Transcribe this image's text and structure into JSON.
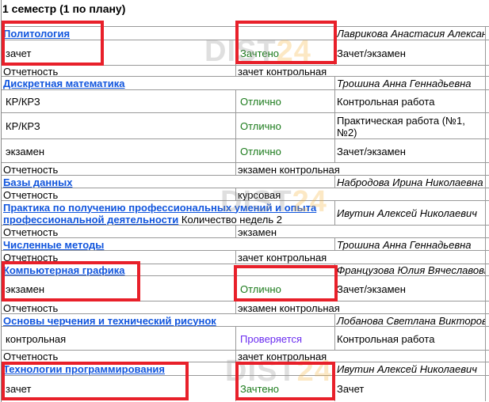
{
  "title": "1 семестр (1 по плану)",
  "watermark": {
    "main": "DIST",
    "accent": "24"
  },
  "colors": {
    "link": "#1155dd",
    "grade_ok": "#1a7a1a",
    "grade_pending": "#6a2cf0",
    "highlight": "#e8202a"
  },
  "rows": [
    {
      "type": "subject",
      "subject": "Политология",
      "teacher": "Лаврикова Анастасия Александровна"
    },
    {
      "type": "grade",
      "kind": "зачет",
      "grade": "Зачтено",
      "grade_style": "green",
      "work": "Зачет/экзамен"
    },
    {
      "type": "report",
      "label": "Отчетность",
      "value": "зачет контрольная"
    },
    {
      "type": "subject",
      "subject": "Дискретная математика",
      "teacher": "Трошина Анна Геннадьевна"
    },
    {
      "type": "grade",
      "kind": "КР/КРЗ",
      "grade": "Отлично",
      "grade_style": "green",
      "work": "Контрольная работа"
    },
    {
      "type": "grade",
      "kind": "КР/КРЗ",
      "grade": "Отлично",
      "grade_style": "green",
      "work": "Практическая работа (№1, №2)"
    },
    {
      "type": "grade",
      "kind": "экзамен",
      "grade": "Отлично",
      "grade_style": "green",
      "work": "Зачет/экзамен"
    },
    {
      "type": "report",
      "label": "Отчетность",
      "value": "экзамен контрольная"
    },
    {
      "type": "subject",
      "subject": "Базы данных",
      "teacher": "Набродова Ирина Николаевна"
    },
    {
      "type": "report",
      "label": "Отчетность",
      "value": "курсовая"
    },
    {
      "type": "subject",
      "subject": "Практика по получению профессиональных умений и опыта профессиональной деятельности",
      "extra": "Количество недель 2",
      "teacher": "Ивутин Алексей Николаевич"
    },
    {
      "type": "report",
      "label": "Отчетность",
      "value": "экзамен"
    },
    {
      "type": "subject",
      "subject": "Численные методы",
      "teacher": "Трошина Анна Геннадьевна"
    },
    {
      "type": "report",
      "label": "Отчетность",
      "value": "зачет контрольная"
    },
    {
      "type": "subject",
      "subject": "Компьютерная графика",
      "teacher": "Французова Юлия Вячеславовна"
    },
    {
      "type": "grade",
      "kind": "экзамен",
      "grade": "Отлично",
      "grade_style": "green",
      "work": "Зачет/экзамен"
    },
    {
      "type": "report",
      "label": "Отчетность",
      "value": "экзамен контрольная"
    },
    {
      "type": "subject",
      "subject": "Основы черчения и технический рисунок",
      "teacher": "Лобанова Светлана Викторовна"
    },
    {
      "type": "grade",
      "kind": "контрольная",
      "grade": "Проверяется",
      "grade_style": "violet",
      "work": "Контрольная работа"
    },
    {
      "type": "report",
      "label": "Отчетность",
      "value": "зачет контрольная"
    },
    {
      "type": "subject",
      "subject": "Технологии программирования",
      "teacher": "Ивутин Алексей Николаевич"
    },
    {
      "type": "grade",
      "kind": "зачет",
      "grade": "Зачтено",
      "grade_style": "green",
      "work": "Зачет"
    }
  ]
}
